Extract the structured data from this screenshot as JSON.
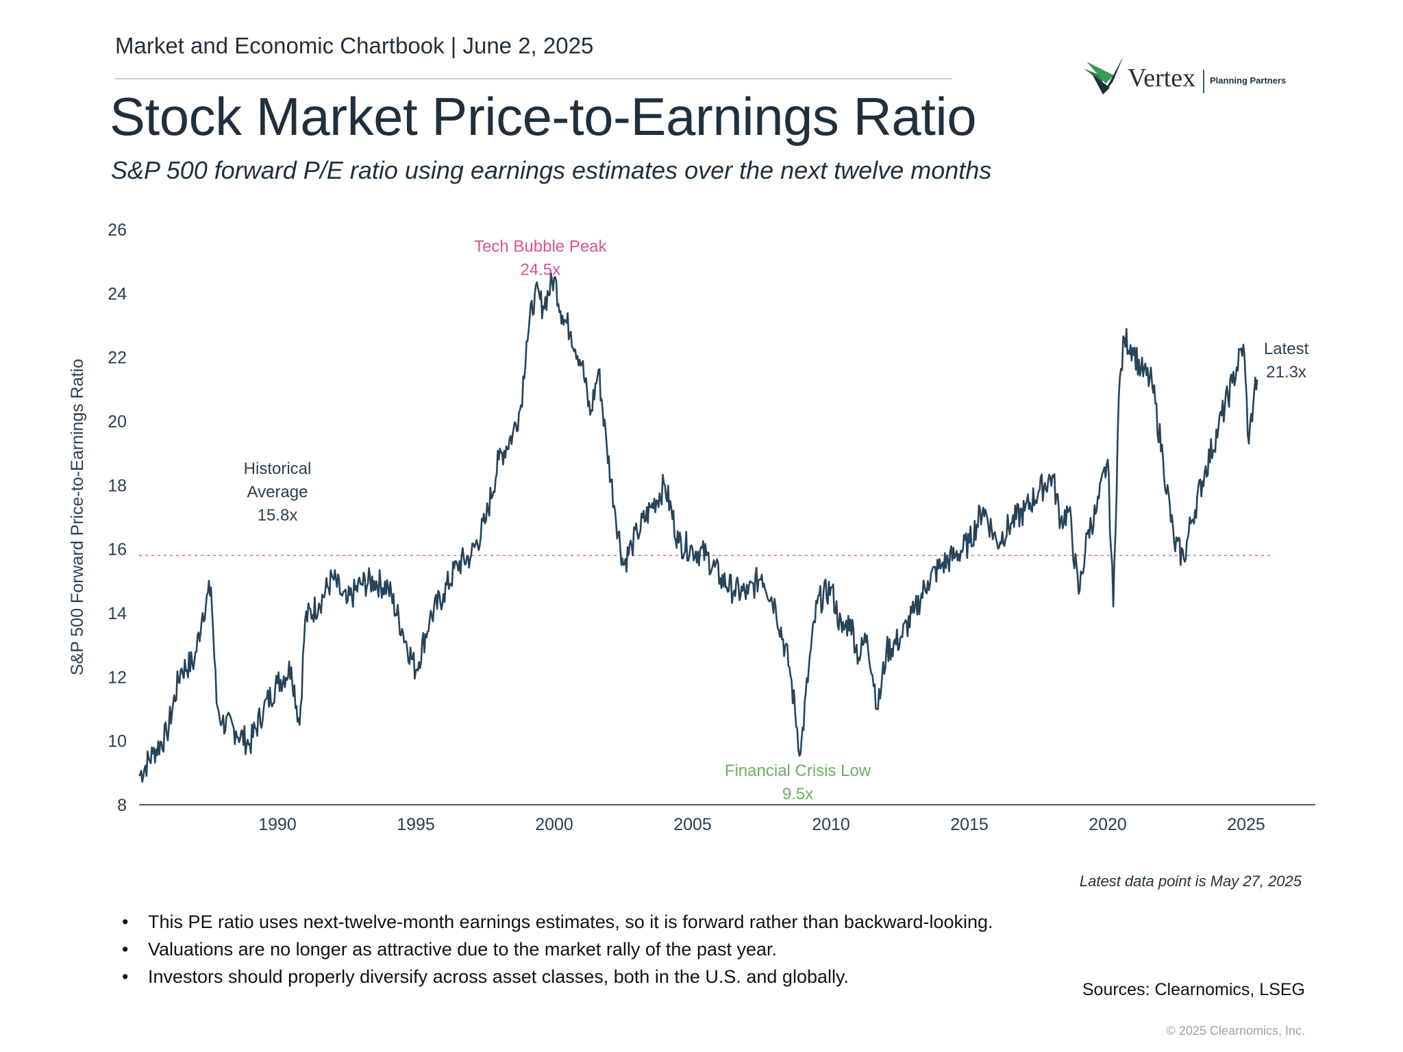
{
  "header": {
    "chartbook": "Market and Economic Chartbook | June 2, 2025",
    "title": "Stock Market Price-to-Earnings Ratio",
    "subtitle": "S&P 500 forward P/E ratio using earnings estimates over the next twelve months"
  },
  "logo": {
    "name": "Vertex",
    "tagline": "Planning Partners"
  },
  "colors": {
    "series": "#26445a",
    "average": "#e58bb8",
    "peak": "#d9538d",
    "low": "#6fad6a",
    "axis": "#4d5d68"
  },
  "chart_data": {
    "type": "line",
    "title": "Stock Market Price-to-Earnings Ratio",
    "ylabel": "S&P 500 Forward Price-to-Earnings Ratio",
    "xlabel": "",
    "ylim": [
      8,
      26
    ],
    "xlim": [
      1985.0,
      2027.5
    ],
    "yticks": [
      "8",
      "10",
      "12",
      "14",
      "16",
      "18",
      "20",
      "22",
      "24",
      "26"
    ],
    "xticks": [
      "1990",
      "1995",
      "2000",
      "2005",
      "2010",
      "2015",
      "2020",
      "2025"
    ],
    "grid": false,
    "series": [
      {
        "name": "S&P 500 forward P/E",
        "x": [
          1985.0,
          1985.5,
          1986.0,
          1986.5,
          1987.0,
          1987.3,
          1987.6,
          1987.8,
          1988.0,
          1988.5,
          1989.0,
          1989.5,
          1990.0,
          1990.5,
          1990.8,
          1991.0,
          1991.5,
          1992.0,
          1992.3,
          1992.5,
          1993.0,
          1993.5,
          1994.0,
          1994.5,
          1995.0,
          1995.5,
          1996.0,
          1996.5,
          1997.0,
          1997.5,
          1998.0,
          1998.5,
          1998.8,
          1999.0,
          1999.3,
          1999.6,
          2000.0,
          2000.3,
          2000.6,
          2001.0,
          2001.3,
          2001.6,
          2001.9,
          2002.2,
          2002.5,
          2002.8,
          2003.0,
          2003.5,
          2004.0,
          2004.5,
          2005.0,
          2005.5,
          2006.0,
          2006.5,
          2007.0,
          2007.5,
          2008.0,
          2008.5,
          2008.9,
          2009.2,
          2009.5,
          2010.0,
          2010.4,
          2010.7,
          2011.0,
          2011.3,
          2011.7,
          2012.0,
          2012.5,
          2013.0,
          2013.5,
          2014.0,
          2014.5,
          2015.0,
          2015.5,
          2016.0,
          2016.5,
          2017.0,
          2017.5,
          2018.0,
          2018.3,
          2018.6,
          2018.95,
          2019.3,
          2019.6,
          2020.0,
          2020.2,
          2020.4,
          2020.6,
          2020.9,
          2021.2,
          2021.6,
          2022.0,
          2022.4,
          2022.75,
          2023.0,
          2023.5,
          2024.0,
          2024.5,
          2024.9,
          2025.1,
          2025.3,
          2025.4
        ],
        "values": [
          8.9,
          9.6,
          10.2,
          12.2,
          12.5,
          14.0,
          14.8,
          11.2,
          10.6,
          10.3,
          9.9,
          11.0,
          11.8,
          12.3,
          10.5,
          13.8,
          14.3,
          15.1,
          14.6,
          14.3,
          14.9,
          15.0,
          14.8,
          13.5,
          12.2,
          13.8,
          14.6,
          15.5,
          15.8,
          16.8,
          18.8,
          19.6,
          20.5,
          22.5,
          24.0,
          23.6,
          24.5,
          23.3,
          22.8,
          21.8,
          20.2,
          21.6,
          19.2,
          17.2,
          15.5,
          16.1,
          16.5,
          17.3,
          18.0,
          16.2,
          16.0,
          15.8,
          15.1,
          14.7,
          14.6,
          15.2,
          14.2,
          12.3,
          9.6,
          12.3,
          14.3,
          14.8,
          13.4,
          13.8,
          12.6,
          13.3,
          11.0,
          12.8,
          13.2,
          14.0,
          15.0,
          15.5,
          15.8,
          16.2,
          17.3,
          16.2,
          16.8,
          17.2,
          17.8,
          18.3,
          16.9,
          17.2,
          14.6,
          16.6,
          17.2,
          18.8,
          14.2,
          20.8,
          22.6,
          22.3,
          21.6,
          21.2,
          18.8,
          16.2,
          15.7,
          16.8,
          18.4,
          19.8,
          21.2,
          22.4,
          19.3,
          21.0,
          21.3
        ]
      }
    ],
    "average": {
      "value": 15.8,
      "label_lines": [
        "Historical",
        "Average",
        "15.8x"
      ]
    },
    "annotations": [
      {
        "key": "peak",
        "lines": [
          "Tech Bubble Peak",
          "24.5x"
        ],
        "x": 1999.5,
        "y": 25.3
      },
      {
        "key": "low",
        "lines": [
          "Financial Crisis Low",
          "9.5x"
        ],
        "x": 2008.8,
        "y": 8.9
      },
      {
        "key": "latest",
        "lines": [
          "Latest",
          "21.3x"
        ],
        "x": 2026.45,
        "y": 22.1
      }
    ]
  },
  "data_note": "Latest data point is May 27, 2025",
  "bullets": [
    "This PE ratio uses next-twelve-month earnings estimates, so it is forward rather than backward-looking.",
    "Valuations are no longer as attractive due to the market rally of the past year.",
    "Investors should properly diversify across asset classes, both in the U.S. and globally."
  ],
  "sources": "Sources: Clearnomics, LSEG",
  "copyright": "© 2025 Clearnomics, Inc."
}
